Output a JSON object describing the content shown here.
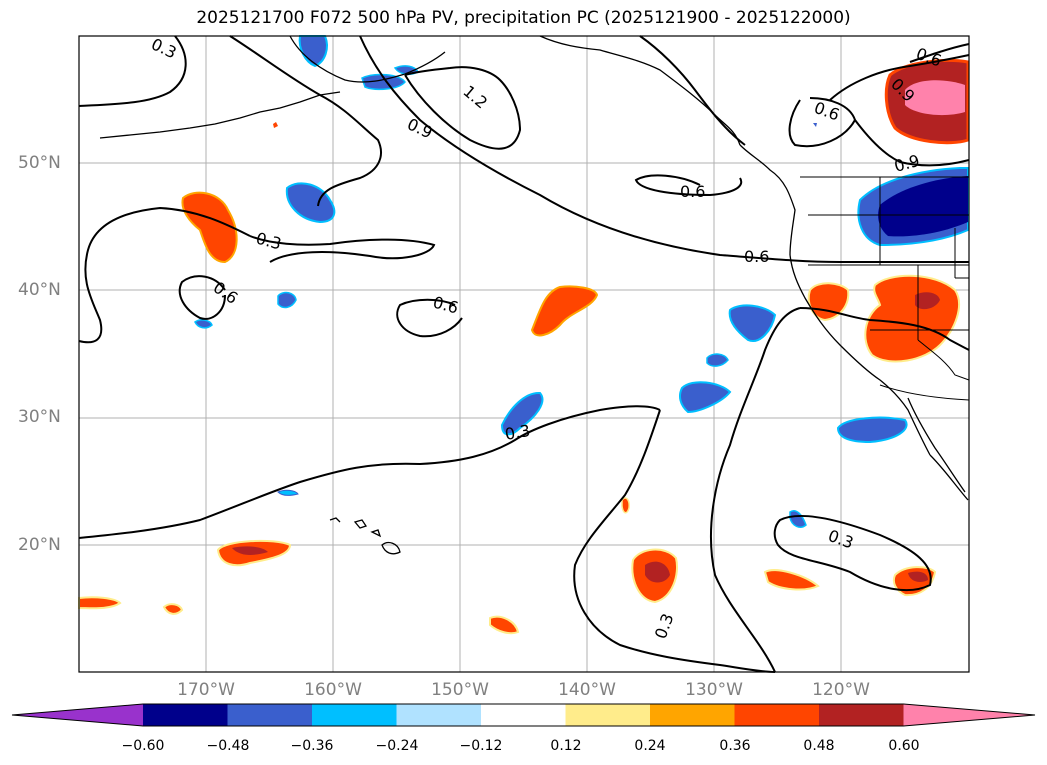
{
  "title": "2025121700 F072 500 hPa PV, precipitation PC (2025121900 - 2025122000)",
  "lat_labels": [
    "50°N",
    "40°N",
    "30°N",
    "20°N"
  ],
  "lon_labels": [
    "170°W",
    "160°W",
    "150°W",
    "140°W",
    "130°W",
    "120°W"
  ],
  "contour_labels": [
    "0.3",
    "0.6",
    "0.9",
    "1.2"
  ],
  "colorbar": {
    "tick_labels": [
      "−0.60",
      "−0.48",
      "−0.36",
      "−0.24",
      "−0.12",
      "0.12",
      "0.24",
      "0.36",
      "0.48",
      "0.60"
    ],
    "colors": [
      "#9932cc",
      "#00008b",
      "#3a5fcd",
      "#00bfff",
      "#b0e2ff",
      "#ffffff",
      "#ffec8b",
      "#ffa500",
      "#ff4500",
      "#b22222",
      "#ff82ab"
    ]
  },
  "colors": {
    "grid": "#b0b0b0",
    "contour": "#000000",
    "coast": "#000000",
    "axis_label": "#808080"
  }
}
